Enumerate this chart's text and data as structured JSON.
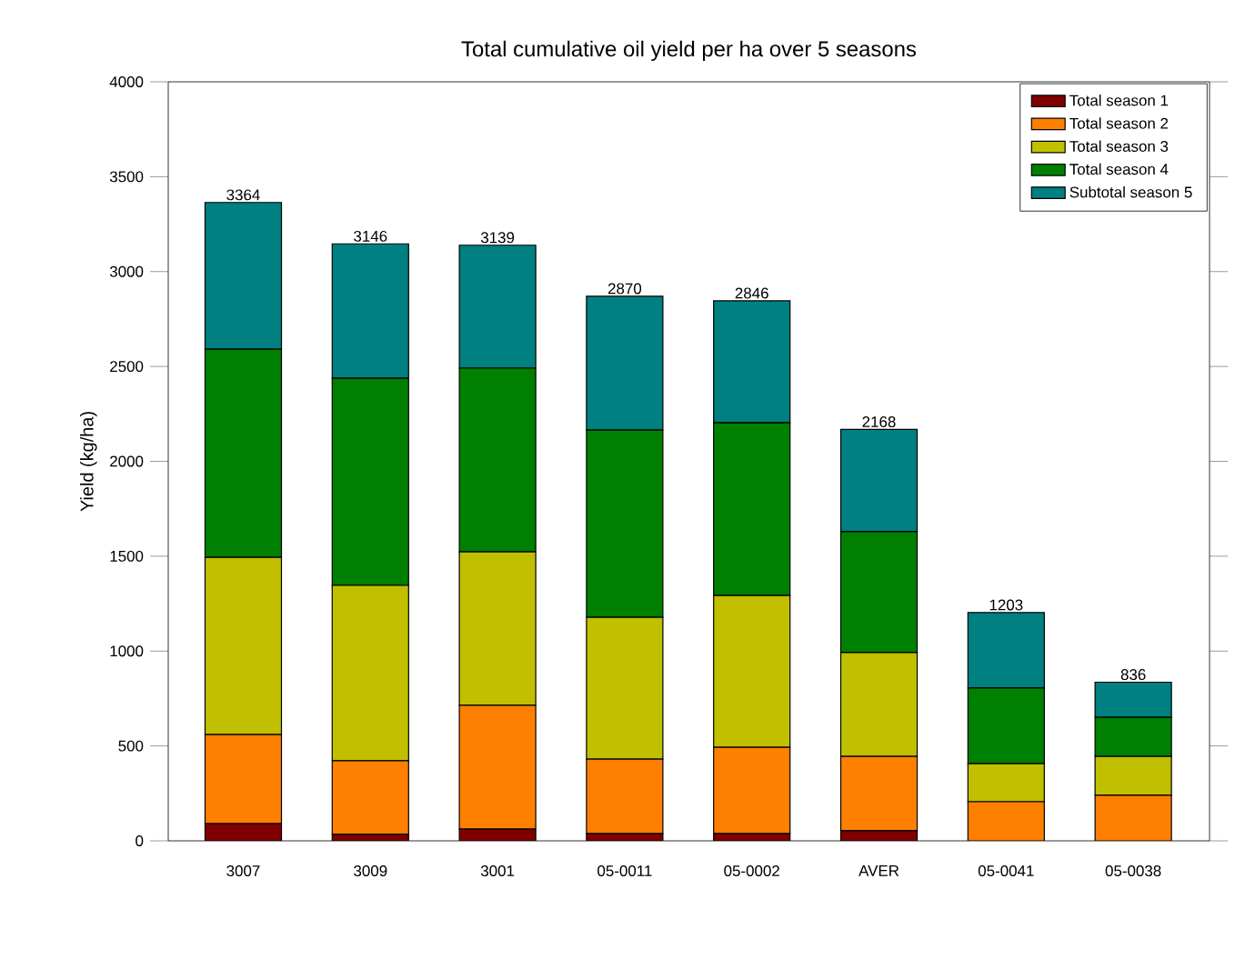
{
  "chart_data": {
    "type": "bar",
    "stacked": true,
    "title": "Total cumulative oil yield per ha over 5 seasons",
    "ylabel": "Yield (kg/ha)",
    "categories": [
      "3007",
      "3009",
      "3001",
      "05-0011",
      "05-0002",
      "AVER",
      "05-0041",
      "05-0038"
    ],
    "series": [
      {
        "name": "Total season 1",
        "color": "#800000",
        "values": [
          91,
          34,
          62,
          38,
          38,
          53,
          null,
          null
        ]
      },
      {
        "name": "Total season 2",
        "color": "#ff8000",
        "values": [
          469,
          388,
          652,
          393,
          455,
          392,
          206,
          240
        ]
      },
      {
        "name": "Total season 3",
        "color": "#c0c000",
        "values": [
          934,
          924,
          809,
          747,
          800,
          547,
          201,
          205
        ]
      },
      {
        "name": "Total season 4",
        "color": "#008000",
        "values": [
          1097,
          1092,
          968,
          987,
          910,
          637,
          398,
          206
        ]
      },
      {
        "name": "Subtotal season 5",
        "color": "#008080",
        "values": [
          773,
          708,
          648,
          705,
          643,
          539,
          398,
          185
        ]
      }
    ],
    "totals": [
      "3364",
      "3146",
      "3139",
      "2870",
      "2846",
      "2168",
      "1203",
      "836"
    ],
    "ylim": [
      0,
      4000
    ],
    "yticks": [
      0,
      500,
      1000,
      1500,
      2000,
      2500,
      3000,
      3500,
      4000
    ],
    "grid": false,
    "legend": "top right"
  }
}
